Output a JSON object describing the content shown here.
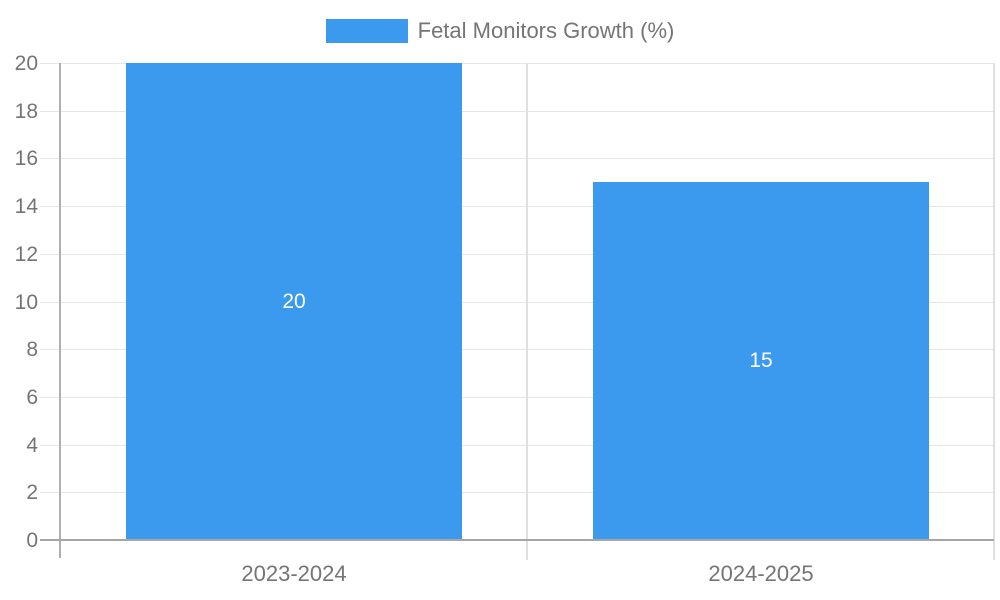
{
  "chart_data": {
    "type": "bar",
    "title": "",
    "legend": {
      "label": "Fetal Monitors Growth (%)",
      "position": "top-center"
    },
    "categories": [
      "2023-2024",
      "2024-2025"
    ],
    "series": [
      {
        "name": "Fetal Monitors Growth (%)",
        "values": [
          20,
          15
        ]
      }
    ],
    "data_labels": [
      "20",
      "15"
    ],
    "xlabel": "",
    "ylabel": "",
    "ylim": [
      0,
      20
    ],
    "yticks": [
      0,
      2,
      4,
      6,
      8,
      10,
      12,
      14,
      16,
      18,
      20
    ],
    "grid": true,
    "legend_visible": true
  },
  "colors": {
    "bar": "#3B99EE",
    "bar_label_text": "#ffffff",
    "gridline": "#E6E6E6",
    "category_divider": "#E0E0E0",
    "y_axis_line": "#B0B0B0",
    "baseline": "#A6A6A6",
    "tick_text": "#757575",
    "legend_text": "#757575",
    "background": "#ffffff"
  }
}
